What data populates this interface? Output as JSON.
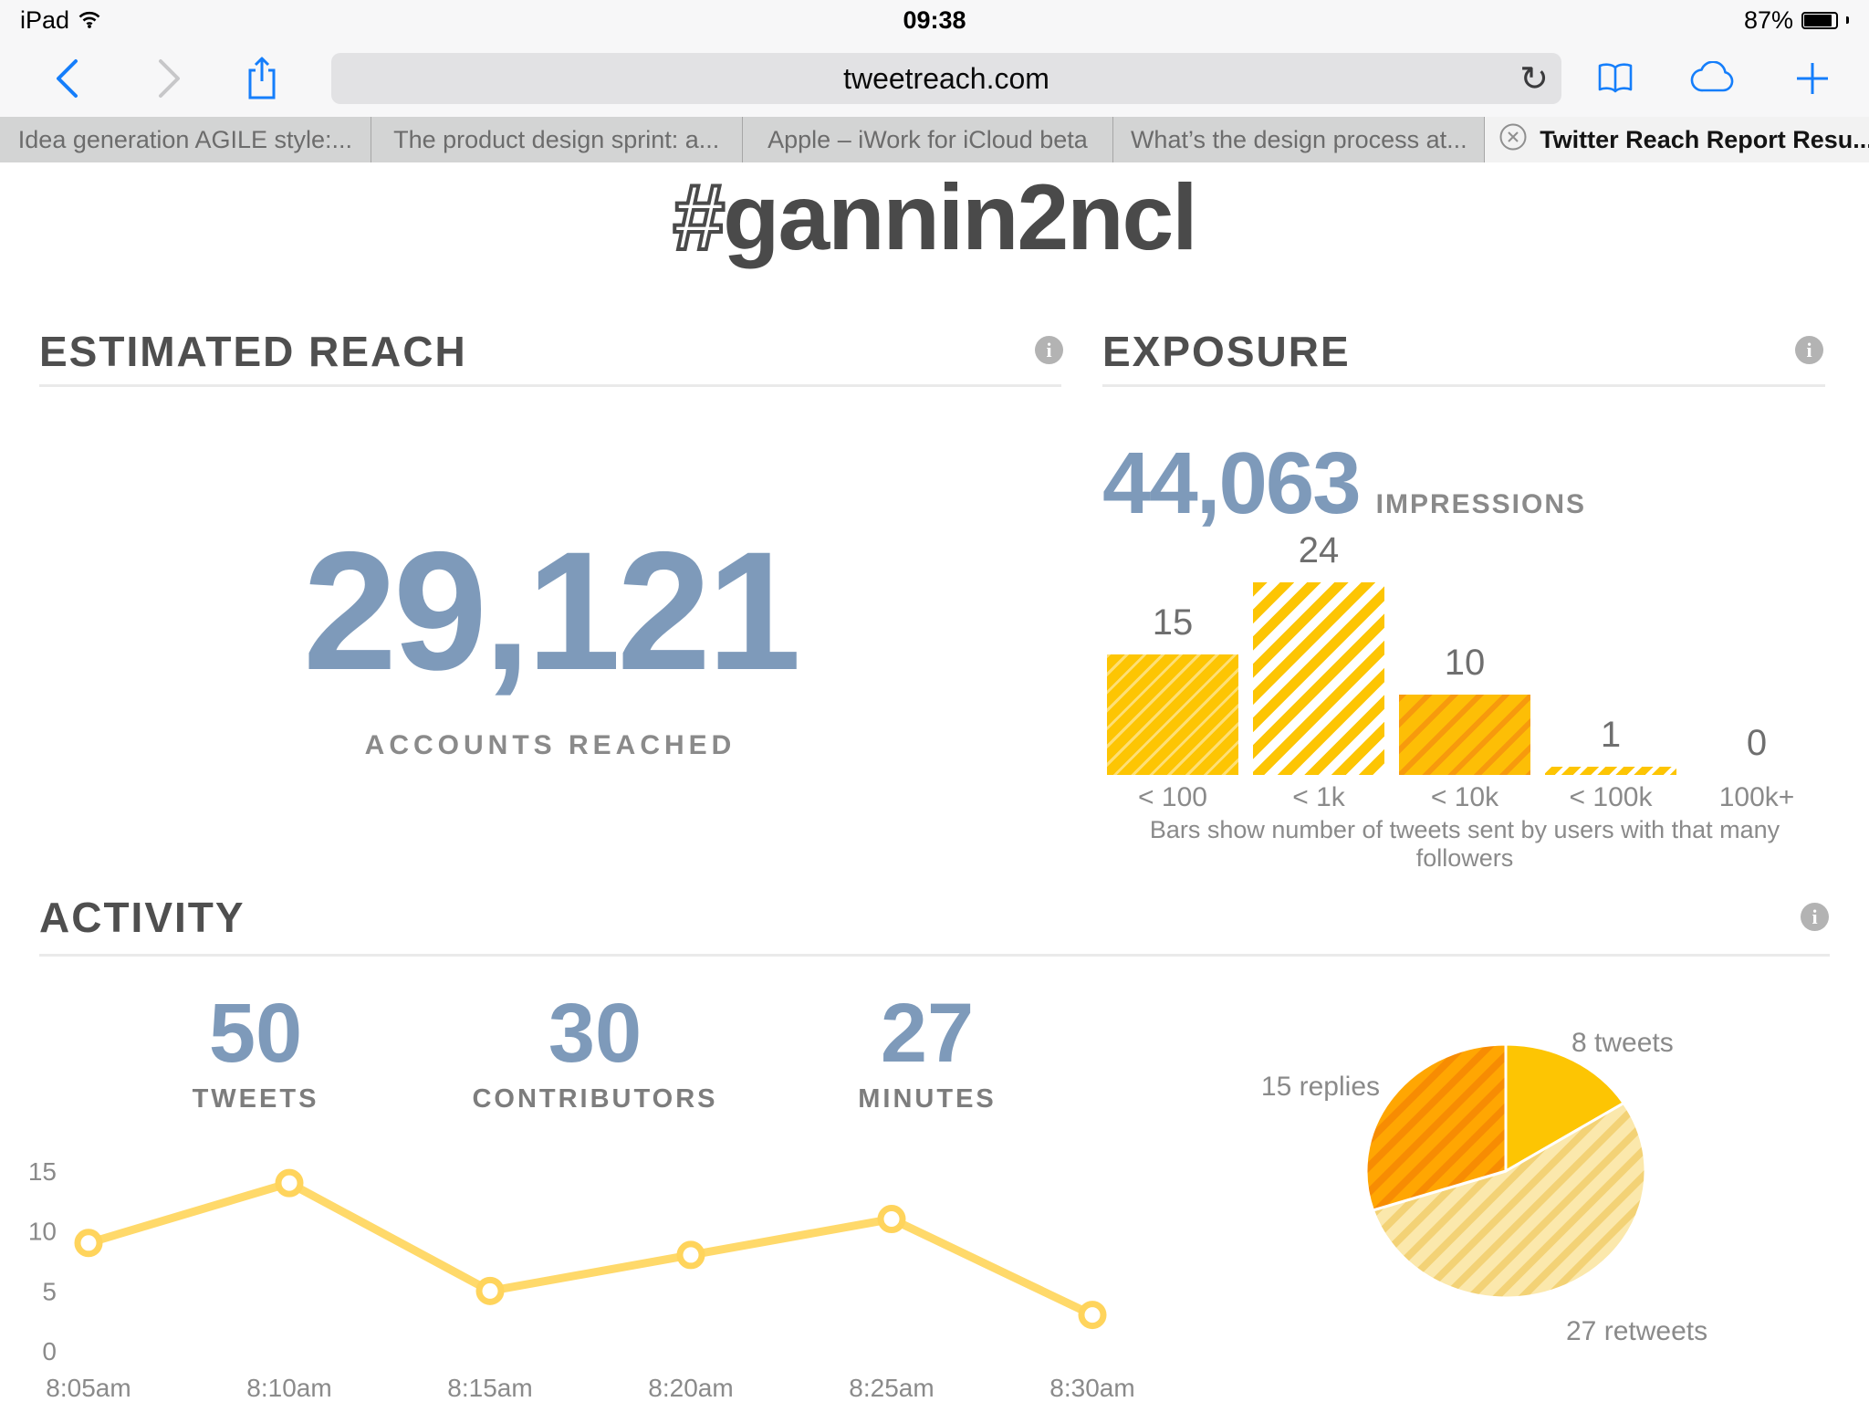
{
  "status_bar": {
    "carrier": "iPad",
    "time": "09:38",
    "battery_percent": "87%"
  },
  "browser": {
    "url": "tweetreach.com",
    "tabs": [
      {
        "label": "Idea generation AGILE style:..."
      },
      {
        "label": "The product design sprint: a..."
      },
      {
        "label": "Apple – iWork for iCloud beta"
      },
      {
        "label": "What’s the design process at..."
      },
      {
        "label": "Twitter Reach Report Resu...",
        "active": true
      }
    ]
  },
  "page": {
    "title_hash": "#",
    "title_rest": "gannin2ncl",
    "estimated_reach": {
      "heading": "ESTIMATED REACH",
      "value": "29,121",
      "label": "ACCOUNTS REACHED"
    },
    "exposure": {
      "heading": "EXPOSURE",
      "value": "44,063",
      "label": "IMPRESSIONS",
      "caption": "Bars show number of tweets sent by users with that many followers"
    },
    "activity": {
      "heading": "ACTIVITY",
      "stats": [
        {
          "value": "50",
          "label": "TWEETS"
        },
        {
          "value": "30",
          "label": "CONTRIBUTORS"
        },
        {
          "value": "27",
          "label": "MINUTES"
        }
      ]
    }
  },
  "chart_data": [
    {
      "type": "bar",
      "title": "Exposure — tweets sent by users with that many followers",
      "categories": [
        "< 100",
        "< 1k",
        "< 10k",
        "< 100k",
        "100k+"
      ],
      "values": [
        15,
        24,
        10,
        1,
        0
      ],
      "ylim": [
        0,
        24
      ],
      "caption": "Bars show number of tweets sent by users with that many followers"
    },
    {
      "type": "line",
      "title": "Activity over time",
      "x": [
        "8:05am",
        "8:10am",
        "8:15am",
        "8:20am",
        "8:25am",
        "8:30am"
      ],
      "values": [
        9,
        14,
        5,
        8,
        11,
        3
      ],
      "yticks": [
        0,
        5,
        10,
        15
      ],
      "ylim": [
        0,
        15
      ],
      "grid": false
    },
    {
      "type": "pie",
      "title": "Tweet types",
      "slices": [
        {
          "label": "8 tweets",
          "value": 8,
          "style": "solid_gold"
        },
        {
          "label": "27 retweets",
          "value": 27,
          "style": "stripes_light"
        },
        {
          "label": "15 replies",
          "value": 15,
          "style": "stripes_orange"
        }
      ]
    }
  ],
  "colors": {
    "accent_blue": "#157efb",
    "stat_blue": "#7e9aba",
    "gold": "#fdc503",
    "line_gold": "#ffd96a",
    "marker_gold": "#ffd45c",
    "pie_pale": "#fbe8ac",
    "pie_pale_stripe": "#f3d276",
    "pie_orange": "#ffa602",
    "pie_orange_stripe": "#f78c03"
  }
}
